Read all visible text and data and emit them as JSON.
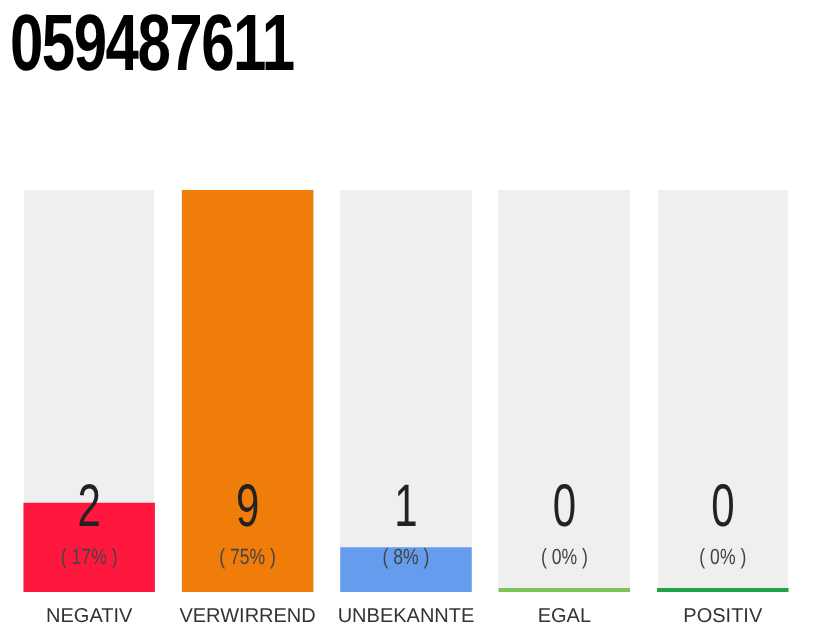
{
  "chart_data": {
    "type": "bar",
    "title": "059487611",
    "categories": [
      "NEGATIV",
      "VERWIRREND",
      "UNBEKANNTE",
      "EGAL",
      "POSITIV"
    ],
    "values": [
      2,
      9,
      1,
      0,
      0
    ],
    "colors": [
      "#ff173d",
      "#f07d0a",
      "#659ced",
      "#7dc35b",
      "#1ea446"
    ],
    "value_labels": [
      "2",
      "9",
      "1",
      "0",
      "0"
    ],
    "annotations": [
      "( 17% )",
      "( 75% )",
      "( 8% )",
      "( 0% )",
      "( 0% )"
    ],
    "grid": false,
    "legend": false
  }
}
